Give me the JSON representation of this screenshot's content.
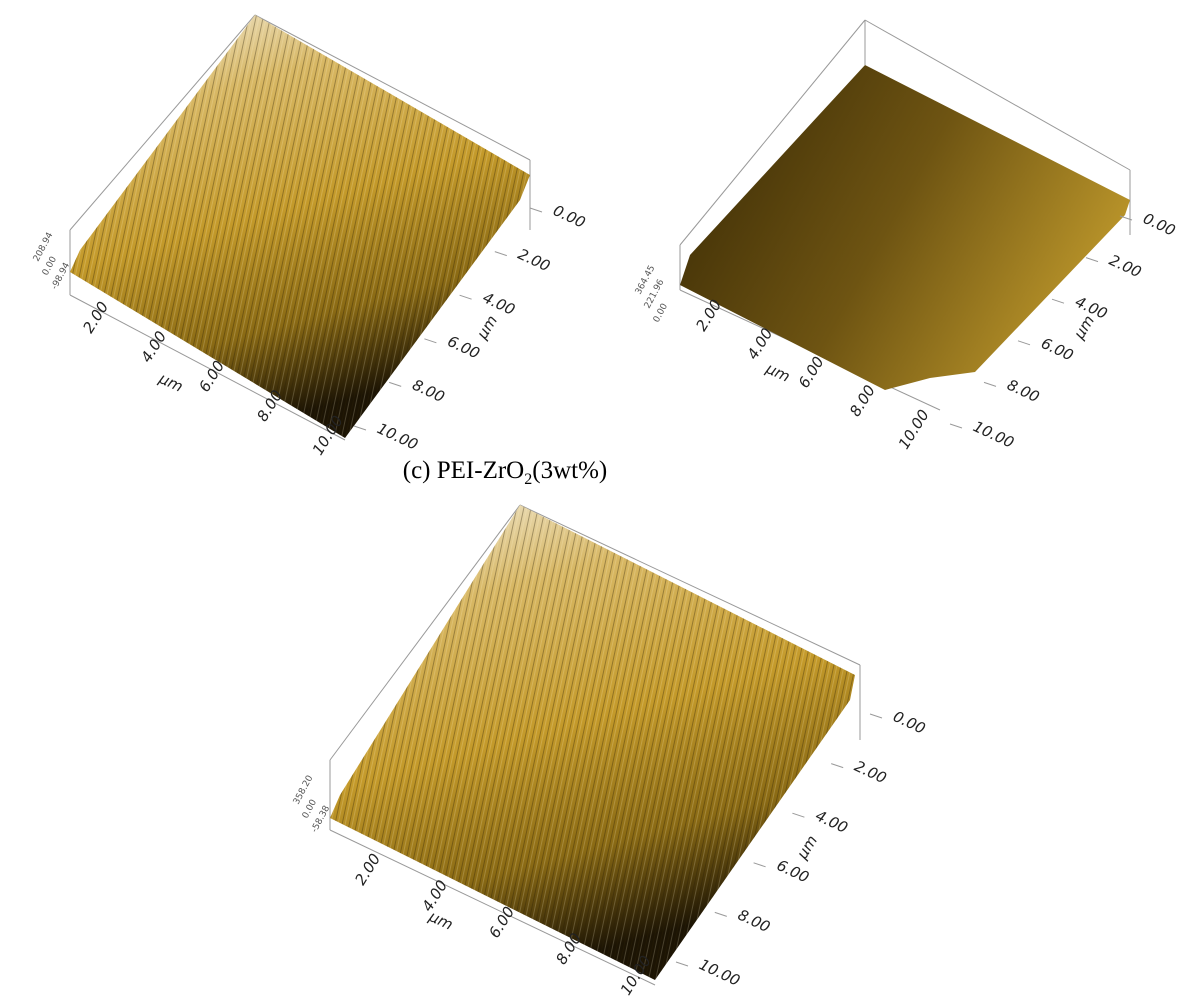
{
  "panels": [
    {
      "z_labels": [
        "208.94",
        "0.00",
        "-98.94"
      ],
      "x_labels": [
        "2.00",
        "4.00",
        "6.00",
        "8.00",
        "10.00"
      ],
      "x_unit": "µm",
      "y_labels": [
        "0.00",
        "2.00",
        "4.00",
        "6.00",
        "8.00",
        "10.00"
      ],
      "y_unit": "µm"
    },
    {
      "z_labels": [
        "364.45",
        "221.96",
        "0.00"
      ],
      "x_labels": [
        "2.00",
        "4.00",
        "6.00",
        "8.00",
        "10.00"
      ],
      "x_unit": "µm",
      "y_labels": [
        "0.00",
        "2.00",
        "4.00",
        "6.00",
        "8.00",
        "10.00"
      ],
      "y_unit": "µm"
    },
    {
      "z_labels": [
        "358.20",
        "0.00",
        "-58.38"
      ],
      "x_labels": [
        "2.00",
        "4.00",
        "6.00",
        "8.00",
        "10.00"
      ],
      "x_unit": "µm",
      "y_labels": [
        "0.00",
        "2.00",
        "4.00",
        "6.00",
        "8.00",
        "10.00"
      ],
      "y_unit": "µm"
    }
  ],
  "caption": {
    "prefix": "(c) PEI-ZrO",
    "subscript": "2",
    "suffix": "(3wt%)"
  }
}
